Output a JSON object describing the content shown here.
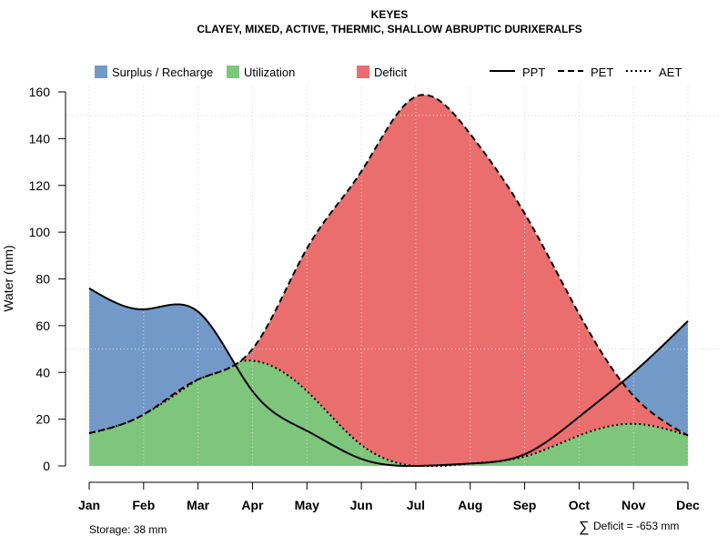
{
  "chart_data": {
    "type": "area",
    "title": "KEYES",
    "subtitle": "CLAYEY, MIXED, ACTIVE, THERMIC, SHALLOW ABRUPTIC DURIXERALFS",
    "xlabel": "",
    "ylabel": "Water (mm)",
    "ylim": [
      0,
      160
    ],
    "yticks": [
      0,
      20,
      40,
      60,
      80,
      100,
      120,
      140,
      160
    ],
    "categories": [
      "Jan",
      "Feb",
      "Mar",
      "Apr",
      "May",
      "Jun",
      "Jul",
      "Aug",
      "Sep",
      "Oct",
      "Nov",
      "Dec"
    ],
    "series": [
      {
        "name": "PPT",
        "style": "solid",
        "values": [
          76,
          67,
          66,
          32,
          15,
          3,
          0,
          1,
          5,
          21,
          40,
          62
        ]
      },
      {
        "name": "PET",
        "style": "dashed",
        "values": [
          14,
          22,
          37,
          50,
          93,
          126,
          158,
          142,
          108,
          65,
          30,
          13
        ]
      },
      {
        "name": "AET",
        "style": "dotted",
        "values": [
          14,
          22,
          37,
          45,
          32,
          9,
          0,
          1,
          4,
          13,
          18,
          13
        ]
      }
    ],
    "areas": [
      {
        "name": "Surplus / Recharge",
        "color": "#7399C8"
      },
      {
        "name": "Utilization",
        "color": "#7FC67D"
      },
      {
        "name": "Deficit",
        "color": "#EB6E6E"
      }
    ],
    "legend": {
      "position": "top",
      "areas": [
        "Surplus / Recharge",
        "Utilization",
        "Deficit"
      ],
      "lines": [
        "PPT",
        "PET",
        "AET"
      ]
    },
    "grid": true,
    "ref_lines": [
      50,
      150
    ],
    "annotations": {
      "storage": "Storage: 38 mm",
      "deficit_symbol": "∑",
      "deficit": "Deficit = -653 mm"
    }
  }
}
